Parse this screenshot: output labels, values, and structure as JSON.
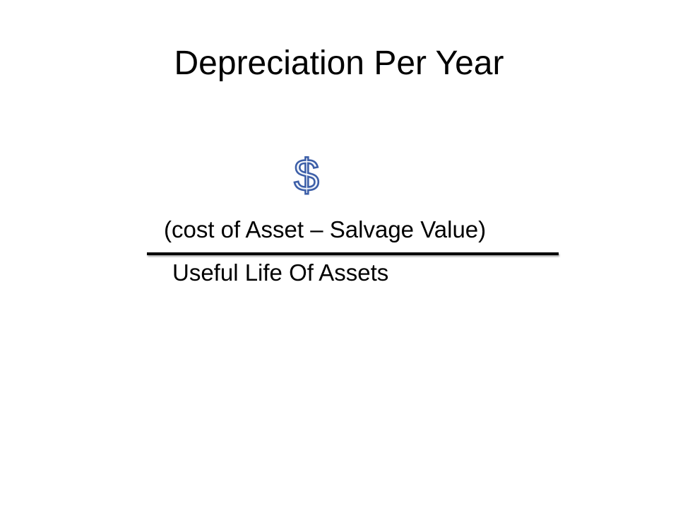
{
  "slide": {
    "title": "Depreciation Per Year",
    "formula": {
      "numerator": "(cost of Asset – Salvage Value)",
      "denominator": "Useful Life Of Assets"
    },
    "icon": {
      "name": "dollar-sign-icon",
      "glyph": "$",
      "color": "#3d5fa8"
    }
  }
}
